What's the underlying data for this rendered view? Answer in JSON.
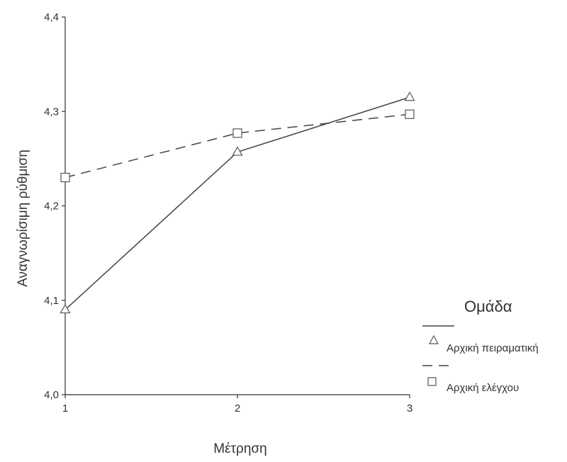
{
  "chart_data": {
    "type": "line",
    "x": [
      1,
      2,
      3
    ],
    "xticks": [
      "1",
      "2",
      "3"
    ],
    "yticks": [
      "4,0",
      "4,1",
      "4,2",
      "4,3",
      "4,4"
    ],
    "xlabel": "Μέτρηση",
    "ylabel": "Αναγνωρίσιμη ρύθμιση",
    "xlim": [
      1,
      3
    ],
    "ylim": [
      4.0,
      4.4
    ],
    "grid": false,
    "legend": {
      "title": "Ομάδα",
      "placement": "right"
    },
    "series": [
      {
        "name": "Αρχική πειραματική",
        "values": [
          4.09,
          4.257,
          4.315
        ],
        "line_style": "solid",
        "marker": "triangle",
        "color": "#444444"
      },
      {
        "name": "Αρχική ελέγχου",
        "values": [
          4.23,
          4.277,
          4.297
        ],
        "line_style": "dashed",
        "marker": "square",
        "color": "#444444"
      }
    ]
  }
}
